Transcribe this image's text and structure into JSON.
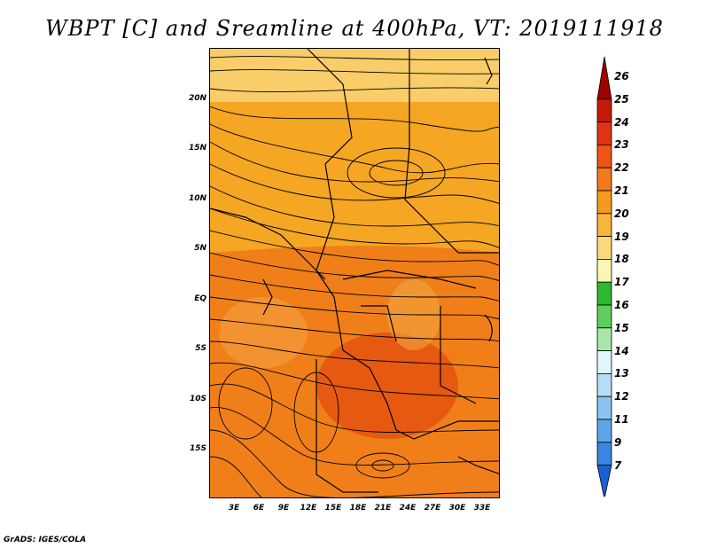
{
  "title": "WBPT [C] and Sreamline at 400hPa, VT: 2019111918",
  "footer": "GrADS: IGES/COLA",
  "map": {
    "lat_labels": [
      "20N",
      "15N",
      "10N",
      "5N",
      "EQ",
      "5S",
      "10S",
      "15S"
    ],
    "lon_labels": [
      "3E",
      "6E",
      "9E",
      "12E",
      "15E",
      "18E",
      "21E",
      "24E",
      "27E",
      "30E",
      "33E"
    ],
    "field_colors": {
      "low": "#fde38a",
      "mid": "#f5a623",
      "high": "#f07f1a",
      "max": "#e85a12"
    }
  },
  "colorbar": {
    "labels": [
      "26",
      "25",
      "24",
      "23",
      "22",
      "21",
      "20",
      "19",
      "18",
      "17",
      "16",
      "15",
      "14",
      "13",
      "12",
      "11",
      "9",
      "7"
    ],
    "colors": [
      "#a00000",
      "#c41a0a",
      "#e03412",
      "#ef5515",
      "#f27a1a",
      "#f59a1e",
      "#f7b53a",
      "#fcd97a",
      "#fbf6b4",
      "#2eb82e",
      "#5fce5f",
      "#a8e6a8",
      "#e0f6fa",
      "#b7ddf6",
      "#8cc3f0",
      "#5fa6e8",
      "#3a86e0",
      "#1b5fd4"
    ]
  }
}
